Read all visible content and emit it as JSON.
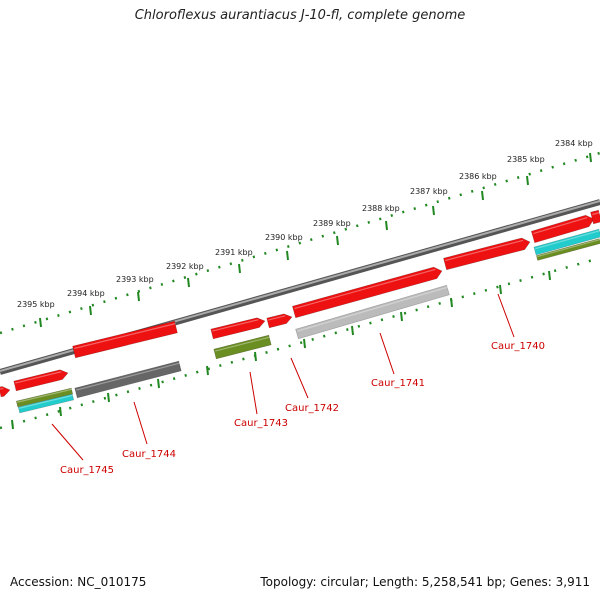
{
  "title": "Chloroflexus aurantiacus J-10-fl, complete genome",
  "footer": {
    "accession": "Accession: NC_010175",
    "topology": "Topology: circular; Length: 5,258,541 bp; Genes: 3,911"
  },
  "colors": {
    "forward_gene": "#ee1111",
    "reverse_gray": "#666666",
    "reverse_light": "#bbbbbb",
    "olive": "#6b8e23",
    "cyan": "#22cccc",
    "ticks": "#228822",
    "backbone": "#888888",
    "label": "#cc0000"
  },
  "ruler": {
    "unit": "kbp",
    "ticks": [
      "2384 kbp",
      "2385 kbp",
      "2386 kbp",
      "2387 kbp",
      "2388 kbp",
      "2389 kbp",
      "2390 kbp",
      "2391 kbp",
      "2392 kbp",
      "2393 kbp",
      "2394 kbp",
      "2395 kbp"
    ]
  },
  "genes": [
    {
      "name": "Caur_1740"
    },
    {
      "name": "Caur_1741"
    },
    {
      "name": "Caur_1742"
    },
    {
      "name": "Caur_1743"
    },
    {
      "name": "Caur_1744"
    },
    {
      "name": "Caur_1745"
    }
  ]
}
